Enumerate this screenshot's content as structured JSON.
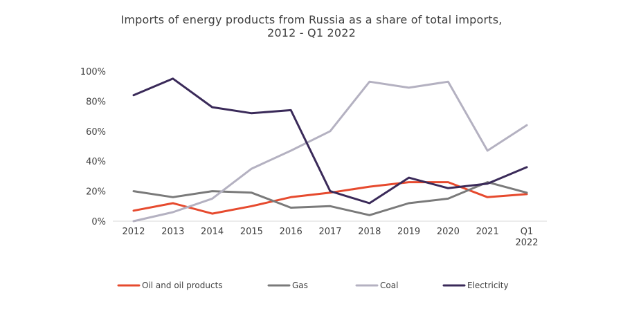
{
  "chart_data": {
    "type": "line",
    "title_lines": [
      "Imports of energy products from Russia as a share of total imports,",
      "2012 - Q1 2022"
    ],
    "xlabel": "",
    "ylabel": "",
    "categories": [
      "2012",
      "2013",
      "2014",
      "2015",
      "2016",
      "2017",
      "2018",
      "2019",
      "2020",
      "2021",
      "Q1 2022"
    ],
    "category_lines": [
      [
        "2012"
      ],
      [
        "2013"
      ],
      [
        "2014"
      ],
      [
        "2015"
      ],
      [
        "2016"
      ],
      [
        "2017"
      ],
      [
        "2018"
      ],
      [
        "2019"
      ],
      [
        "2020"
      ],
      [
        "2021"
      ],
      [
        "Q1",
        "2022"
      ]
    ],
    "ylim": [
      0,
      100
    ],
    "yticks": [
      0,
      20,
      40,
      60,
      80,
      100
    ],
    "ytick_labels": [
      "0%",
      "20%",
      "40%",
      "60%",
      "80%",
      "100%"
    ],
    "grid": false,
    "legend_position": "bottom",
    "series": [
      {
        "name": "Oil and oil products",
        "color": "#e64a2e",
        "values": [
          7,
          12,
          5,
          10,
          16,
          19,
          23,
          26,
          26,
          16,
          18
        ]
      },
      {
        "name": "Gas",
        "color": "#7a7a7a",
        "values": [
          20,
          16,
          20,
          19,
          9,
          10,
          4,
          12,
          15,
          26,
          19
        ]
      },
      {
        "name": "Coal",
        "color": "#b4b1c1",
        "values": [
          0,
          6,
          15,
          35,
          47,
          60,
          93,
          89,
          93,
          47,
          64
        ]
      },
      {
        "name": "Electricity",
        "color": "#3a2a59",
        "values": [
          84,
          95,
          76,
          72,
          74,
          20,
          12,
          29,
          22,
          25,
          36
        ]
      }
    ]
  }
}
